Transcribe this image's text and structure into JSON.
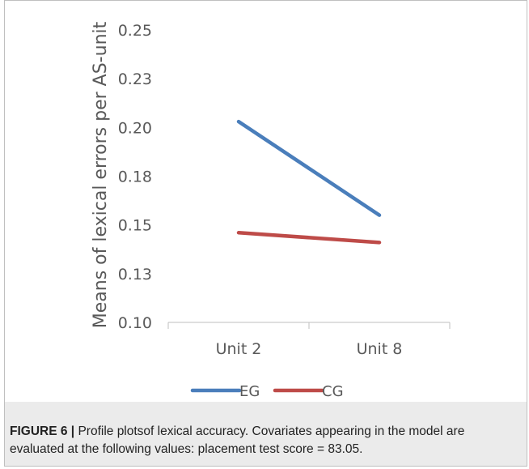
{
  "chart_data": {
    "type": "line",
    "title": "",
    "xlabel": "",
    "ylabel": "Means of lexical errors per AS-unit",
    "categories": [
      "Unit 2",
      "Unit 8"
    ],
    "yticks": [
      "0.25",
      "0.23",
      "0.20",
      "0.18",
      "0.15",
      "0.13",
      "0.10"
    ],
    "ylim": [
      0.1,
      0.25
    ],
    "grid": false,
    "legend_position": "bottom",
    "series": [
      {
        "name": "EG",
        "color": "#4a7ebb",
        "values": [
          0.203,
          0.155
        ]
      },
      {
        "name": "CG",
        "color": "#be4b48",
        "values": [
          0.146,
          0.141
        ]
      }
    ]
  },
  "caption": {
    "label": "FIGURE 6 |",
    "text": " Profile plotsof lexical accuracy. Covariates appearing in the model are evaluated at the following values: placement test score = 83.05."
  }
}
